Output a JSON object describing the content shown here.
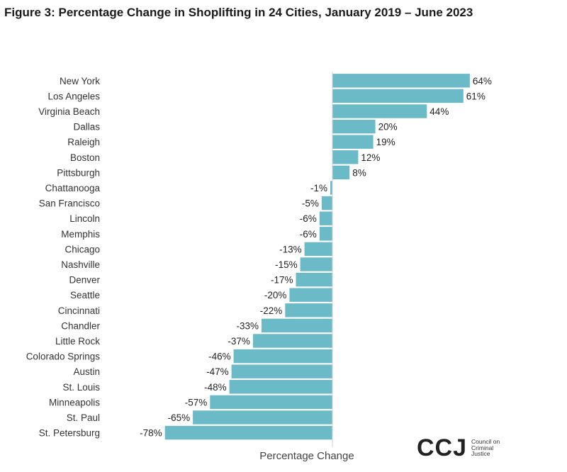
{
  "chart_data": {
    "type": "bar",
    "orientation": "horizontal",
    "title": "Figure 3: Percentage Change in Shoplifting in 24 Cities, January 2019 – June 2023",
    "xlabel": "Percentage Change",
    "ylabel": "",
    "categories": [
      "New York",
      "Los Angeles",
      "Virginia Beach",
      "Dallas",
      "Raleigh",
      "Boston",
      "Pittsburgh",
      "Chattanooga",
      "San Francisco",
      "Lincoln",
      "Memphis",
      "Chicago",
      "Nashville",
      "Denver",
      "Seattle",
      "Cincinnati",
      "Chandler",
      "Little Rock",
      "Colorado Springs",
      "Austin",
      "St. Louis",
      "Minneapolis",
      "St. Paul",
      "St. Petersburg"
    ],
    "values": [
      64,
      61,
      44,
      20,
      19,
      12,
      8,
      -1,
      -5,
      -6,
      -6,
      -13,
      -15,
      -17,
      -20,
      -22,
      -33,
      -37,
      -46,
      -47,
      -48,
      -57,
      -65,
      -78
    ],
    "data_labels": [
      "64%",
      "61%",
      "44%",
      "20%",
      "19%",
      "12%",
      "8%",
      "-1%",
      "-5%",
      "-6%",
      "-6%",
      "-13%",
      "-15%",
      "-17%",
      "-20%",
      "-22%",
      "-33%",
      "-37%",
      "-46%",
      "-47%",
      "-48%",
      "-57%",
      "-65%",
      "-78%"
    ],
    "bar_color": "#6bbac8",
    "xlim": [
      -78,
      64
    ],
    "grid": false,
    "legend": "none"
  },
  "branding": {
    "logo_mark": "CCJ",
    "logo_line1": "Council on",
    "logo_line2": "Criminal",
    "logo_line3": "Justice"
  }
}
